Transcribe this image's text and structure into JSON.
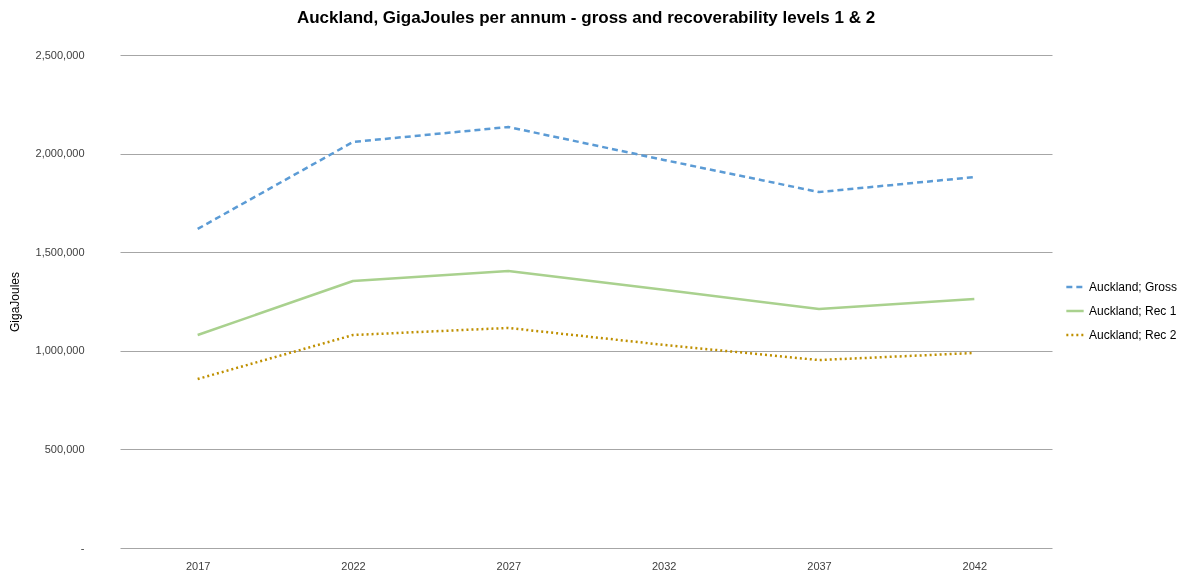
{
  "chart_data": {
    "type": "line",
    "title": "Auckland, GigaJoules per annum - gross and recoverability levels 1 & 2",
    "ylabel": "GigaJoules",
    "categories": [
      "2017",
      "2022",
      "2027",
      "2032",
      "2037",
      "2042"
    ],
    "series": [
      {
        "name": "Auckland; Gross",
        "color": "#5b9bd5",
        "line_style": "dashed",
        "values": [
          1618000,
          2059000,
          2135000,
          1968000,
          1805000,
          1881000
        ]
      },
      {
        "name": "Auckland; Rec 1",
        "color": "#a9d18e",
        "line_style": "solid",
        "values": [
          1080000,
          1354000,
          1405000,
          1310000,
          1212000,
          1263000
        ]
      },
      {
        "name": "Auckland; Rec 2",
        "color": "#bf9000",
        "line_style": "dotted",
        "values": [
          857000,
          1080000,
          1116000,
          1030000,
          953000,
          989000
        ]
      }
    ],
    "ylim": [
      0,
      2500000
    ],
    "yticks": [
      {
        "value": 0,
        "label": "-"
      },
      {
        "value": 500000,
        "label": "500,000"
      },
      {
        "value": 1000000,
        "label": "1,000,000"
      },
      {
        "value": 1500000,
        "label": "1,500,000"
      },
      {
        "value": 2000000,
        "label": "2,000,000"
      },
      {
        "value": 2500000,
        "label": "2,500,000"
      }
    ],
    "grid": "y",
    "legend": "right"
  }
}
